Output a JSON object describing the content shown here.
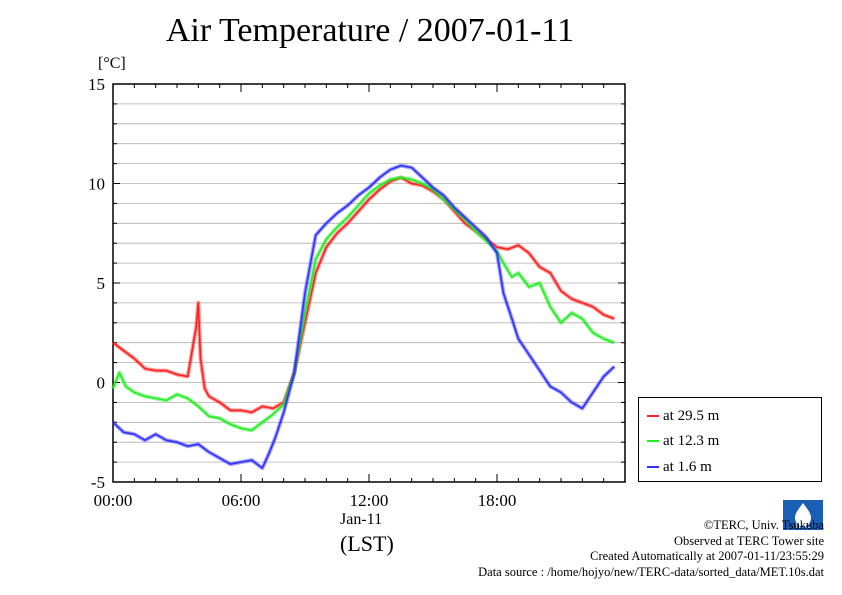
{
  "title": "Air Temperature / 2007-01-11",
  "unit_label": "[°C]",
  "x_date_label": "Jan-11",
  "x_lst_label": "(LST)",
  "footer": {
    "copyright": "©TERC, Univ. Tsukuba",
    "observed": "Observed at TERC Tower site",
    "created": "Created Automatically at 2007-01-11/23:55:29",
    "source": "Data source : /home/hojyo/new/TERC-data/sorted_data/MET.10s.dat"
  },
  "logo": {
    "text": "TERC"
  },
  "chart_data": {
    "type": "line",
    "xlabel": "",
    "ylabel": "[°C]",
    "ylim": [
      -5,
      15
    ],
    "xlim_hours": [
      0,
      24
    ],
    "yticks": [
      -5,
      0,
      5,
      10,
      15
    ],
    "yticklabels": [
      "-5",
      "0",
      "5",
      "10",
      "15"
    ],
    "xticks_hours": [
      0,
      6,
      12,
      18
    ],
    "xticklabels": [
      "00:00",
      "06:00",
      "12:00",
      "18:00"
    ],
    "grid": true,
    "legend_position": "right",
    "series": [
      {
        "name": "at 29.5 m",
        "color": "#ff2020",
        "x": [
          0,
          0.5,
          1,
          1.5,
          2,
          2.5,
          3,
          3.5,
          3.9,
          4.0,
          4.1,
          4.3,
          4.5,
          5,
          5.5,
          6,
          6.5,
          7,
          7.5,
          8,
          8.5,
          9,
          9.5,
          10,
          10.5,
          11,
          11.5,
          12,
          12.5,
          13,
          13.5,
          14,
          14.5,
          15,
          15.5,
          16,
          16.5,
          17,
          17.5,
          18,
          18.5,
          19,
          19.5,
          20,
          20.5,
          21,
          21.5,
          22,
          22.5,
          23,
          23.5
        ],
        "values": [
          2.0,
          1.6,
          1.2,
          0.7,
          0.6,
          0.6,
          0.4,
          0.3,
          2.8,
          4.0,
          1.2,
          -0.3,
          -0.7,
          -1.0,
          -1.4,
          -1.4,
          -1.5,
          -1.2,
          -1.3,
          -1.0,
          0.5,
          3.0,
          5.5,
          6.8,
          7.5,
          8.0,
          8.6,
          9.2,
          9.7,
          10.1,
          10.3,
          10.0,
          9.9,
          9.6,
          9.2,
          8.6,
          8.0,
          7.6,
          7.2,
          6.8,
          6.7,
          6.9,
          6.5,
          5.8,
          5.5,
          4.6,
          4.2,
          4.0,
          3.8,
          3.4,
          3.2
        ]
      },
      {
        "name": "at 12.3 m",
        "color": "#22ee22",
        "x": [
          0,
          0.3,
          0.6,
          1,
          1.5,
          2,
          2.5,
          3,
          3.5,
          4,
          4.5,
          5,
          5.5,
          6,
          6.5,
          7,
          7.5,
          8,
          8.5,
          9,
          9.5,
          10,
          10.5,
          11,
          11.5,
          12,
          12.5,
          13,
          13.5,
          14,
          14.5,
          15,
          15.5,
          16,
          16.5,
          17,
          17.5,
          18,
          18.3,
          18.7,
          19,
          19.5,
          20,
          20.5,
          21,
          21.5,
          22,
          22.5,
          23,
          23.5
        ],
        "values": [
          -0.3,
          0.5,
          -0.2,
          -0.5,
          -0.7,
          -0.8,
          -0.9,
          -0.6,
          -0.8,
          -1.2,
          -1.7,
          -1.8,
          -2.1,
          -2.3,
          -2.4,
          -2.0,
          -1.6,
          -1.1,
          0.5,
          3.5,
          6.2,
          7.2,
          7.8,
          8.3,
          8.9,
          9.5,
          9.9,
          10.2,
          10.3,
          10.2,
          10.0,
          9.7,
          9.2,
          8.7,
          8.2,
          7.6,
          7.1,
          6.6,
          6.0,
          5.3,
          5.5,
          4.8,
          5.0,
          3.8,
          3.0,
          3.5,
          3.2,
          2.5,
          2.2,
          2.0
        ]
      },
      {
        "name": "at 1.6 m",
        "color": "#3030ff",
        "x": [
          0,
          0.5,
          1,
          1.5,
          2,
          2.5,
          3,
          3.5,
          4,
          4.5,
          5,
          5.5,
          6,
          6.5,
          7,
          7.3,
          7.6,
          8,
          8.5,
          9,
          9.5,
          10,
          10.5,
          11,
          11.5,
          12,
          12.5,
          13,
          13.5,
          14,
          14.5,
          15,
          15.5,
          16,
          16.5,
          17,
          17.5,
          18,
          18.3,
          18.7,
          19,
          19.5,
          20,
          20.5,
          21,
          21.5,
          22,
          22.5,
          23,
          23.5
        ],
        "values": [
          -2.0,
          -2.5,
          -2.6,
          -2.9,
          -2.6,
          -2.9,
          -3.0,
          -3.2,
          -3.1,
          -3.5,
          -3.8,
          -4.1,
          -4.0,
          -3.9,
          -4.3,
          -3.6,
          -2.8,
          -1.5,
          0.5,
          4.5,
          7.4,
          8.0,
          8.5,
          8.9,
          9.4,
          9.8,
          10.3,
          10.7,
          10.9,
          10.8,
          10.3,
          9.8,
          9.4,
          8.8,
          8.3,
          7.8,
          7.3,
          6.5,
          4.5,
          3.2,
          2.2,
          1.4,
          0.6,
          -0.2,
          -0.5,
          -1.0,
          -1.3,
          -0.5,
          0.3,
          0.8
        ]
      }
    ]
  }
}
